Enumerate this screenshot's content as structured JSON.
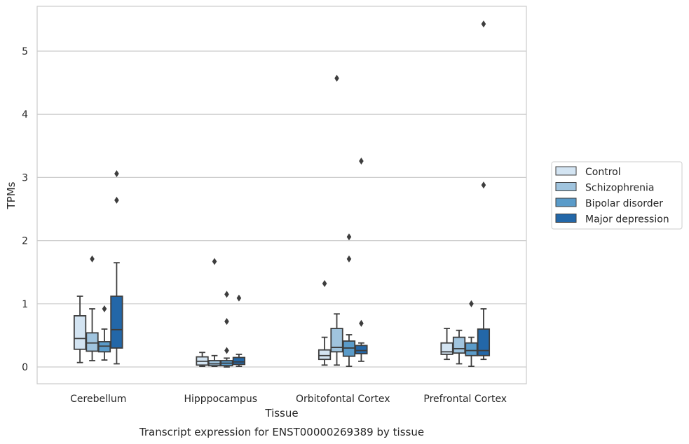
{
  "chart_data": {
    "type": "box",
    "caption": "Transcript expression for ENST00000269389 by tissue",
    "xlabel": "Tissue",
    "ylabel": "TPMs",
    "ylim": [
      -0.27,
      5.75
    ],
    "yticks": [
      0,
      1,
      2,
      3,
      4,
      5
    ],
    "grid": "horizontal",
    "legend_placement": "right",
    "categories": [
      "Cerebellum",
      "Hipppocampus",
      "Orbitofontal Cortex",
      "Prefrontal Cortex"
    ],
    "series": [
      {
        "name": "Control",
        "color": "#d3e4f2",
        "boxes": [
          {
            "whisker_low": 0.07,
            "q1": 0.28,
            "median": 0.45,
            "q3": 0.81,
            "whisker_high": 1.12,
            "outliers": []
          },
          {
            "whisker_low": 0.01,
            "q1": 0.03,
            "median": 0.09,
            "q3": 0.16,
            "whisker_high": 0.23,
            "outliers": []
          },
          {
            "whisker_low": 0.03,
            "q1": 0.12,
            "median": 0.18,
            "q3": 0.27,
            "whisker_high": 0.47,
            "outliers": [
              1.32
            ]
          },
          {
            "whisker_low": 0.12,
            "q1": 0.2,
            "median": 0.24,
            "q3": 0.38,
            "whisker_high": 0.61,
            "outliers": []
          }
        ]
      },
      {
        "name": "Schizophrenia",
        "color": "#a0c4de",
        "boxes": [
          {
            "whisker_low": 0.1,
            "q1": 0.25,
            "median": 0.38,
            "q3": 0.54,
            "whisker_high": 0.92,
            "outliers": [
              1.71
            ]
          },
          {
            "whisker_low": 0.01,
            "q1": 0.02,
            "median": 0.05,
            "q3": 0.1,
            "whisker_high": 0.18,
            "outliers": [
              1.67
            ]
          },
          {
            "whisker_low": 0.03,
            "q1": 0.24,
            "median": 0.31,
            "q3": 0.61,
            "whisker_high": 0.84,
            "outliers": [
              4.57
            ]
          },
          {
            "whisker_low": 0.05,
            "q1": 0.22,
            "median": 0.29,
            "q3": 0.47,
            "whisker_high": 0.58,
            "outliers": []
          }
        ]
      },
      {
        "name": "Bipolar disorder",
        "color": "#5a9bc9",
        "boxes": [
          {
            "whisker_low": 0.11,
            "q1": 0.24,
            "median": 0.33,
            "q3": 0.4,
            "whisker_high": 0.6,
            "outliers": [
              0.92
            ]
          },
          {
            "whisker_low": 0.0,
            "q1": 0.02,
            "median": 0.06,
            "q3": 0.1,
            "whisker_high": 0.14,
            "outliers": [
              1.15,
              0.72,
              0.26
            ]
          },
          {
            "whisker_low": 0.01,
            "q1": 0.17,
            "median": 0.3,
            "q3": 0.41,
            "whisker_high": 0.51,
            "outliers": [
              2.06,
              1.71
            ]
          },
          {
            "whisker_low": 0.01,
            "q1": 0.18,
            "median": 0.26,
            "q3": 0.38,
            "whisker_high": 0.47,
            "outliers": [
              1.0
            ]
          }
        ]
      },
      {
        "name": "Major depression",
        "color": "#2367a8",
        "boxes": [
          {
            "whisker_low": 0.05,
            "q1": 0.3,
            "median": 0.59,
            "q3": 1.12,
            "whisker_high": 1.65,
            "outliers": [
              3.06,
              2.64
            ]
          },
          {
            "whisker_low": 0.01,
            "q1": 0.04,
            "median": 0.08,
            "q3": 0.15,
            "whisker_high": 0.2,
            "outliers": [
              1.09
            ]
          },
          {
            "whisker_low": 0.09,
            "q1": 0.21,
            "median": 0.26,
            "q3": 0.34,
            "whisker_high": 0.38,
            "outliers": [
              3.26,
              0.69
            ]
          },
          {
            "whisker_low": 0.12,
            "q1": 0.18,
            "median": 0.26,
            "q3": 0.6,
            "whisker_high": 0.92,
            "outliers": [
              5.43,
              2.88
            ]
          }
        ]
      }
    ]
  }
}
